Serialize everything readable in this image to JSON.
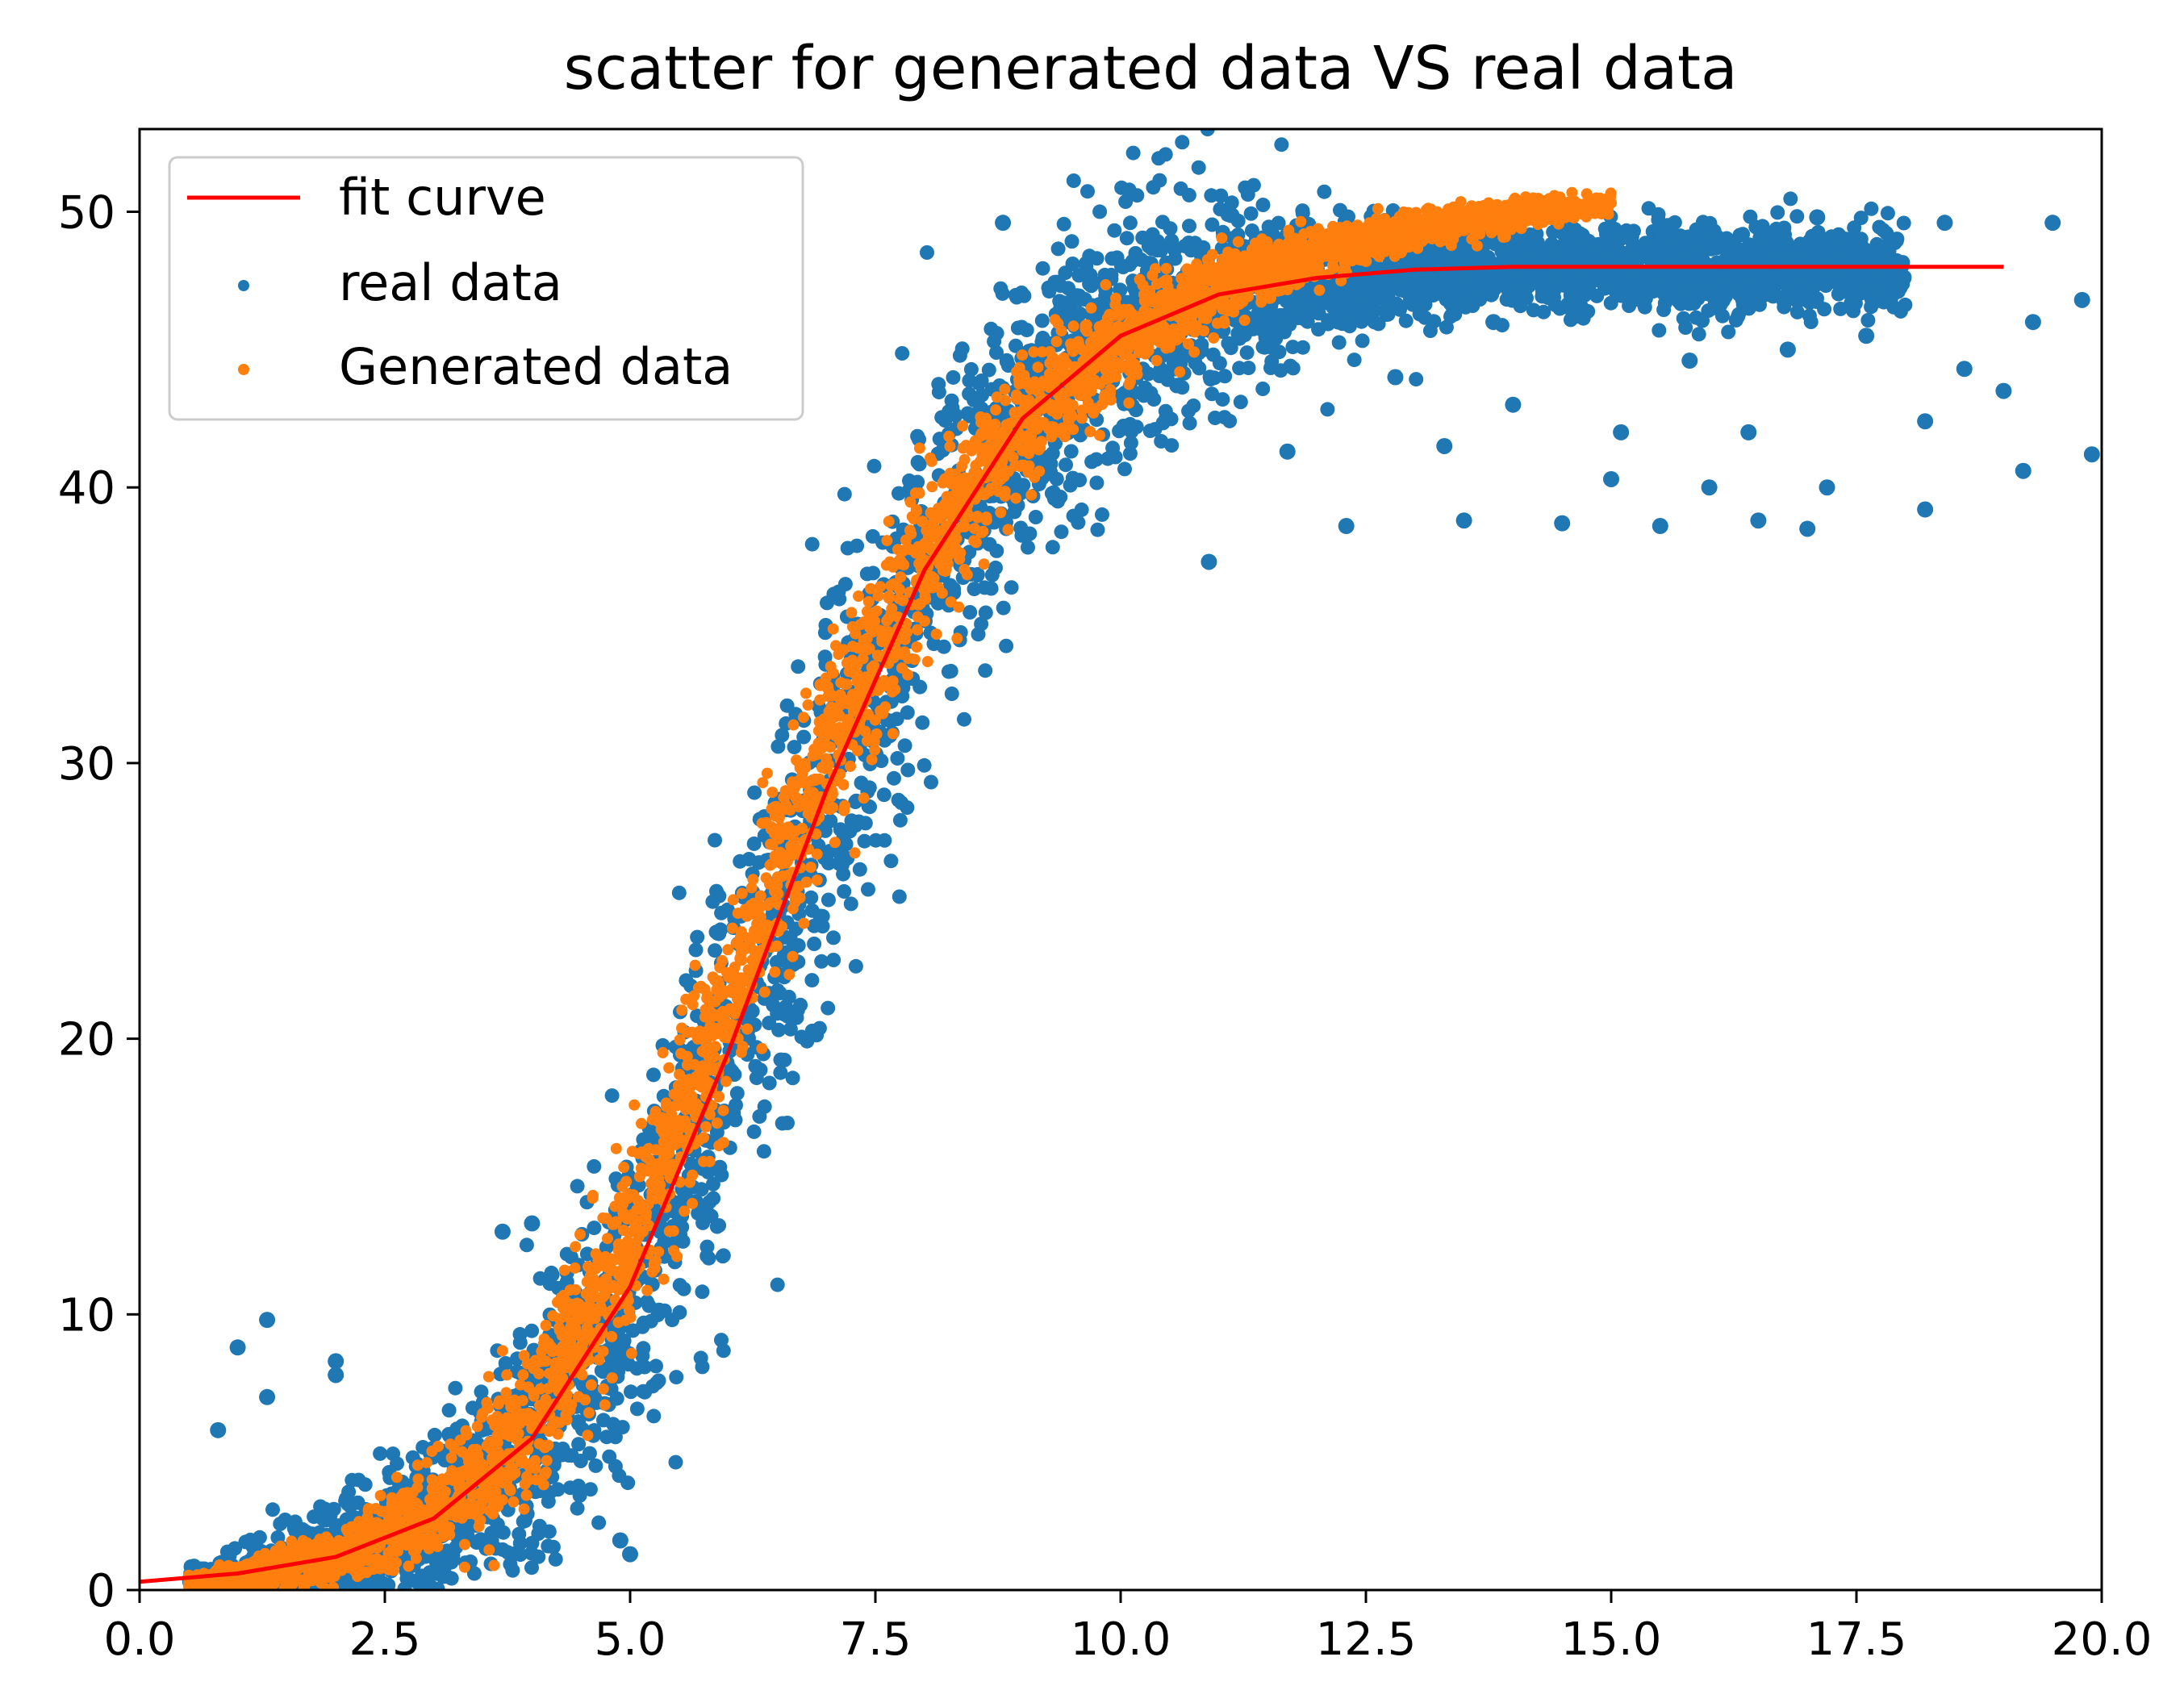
{
  "chart_data": {
    "type": "scatter",
    "title": "scatter for  generated data VS real data",
    "xlabel": "",
    "ylabel": "",
    "xlim": [
      0,
      20
    ],
    "ylim": [
      0,
      53
    ],
    "x_ticks": [
      0,
      2.5,
      5,
      7.5,
      10,
      12.5,
      15,
      17.5,
      20
    ],
    "x_tick_labels": [
      "0.0",
      "2.5",
      "5.0",
      "7.5",
      "10.0",
      "12.5",
      "15.0",
      "17.5",
      "20.0"
    ],
    "y_ticks": [
      0,
      10,
      20,
      30,
      40,
      50
    ],
    "y_tick_labels": [
      "0",
      "10",
      "20",
      "30",
      "40",
      "50"
    ],
    "grid": false,
    "legend_position": "top-left",
    "legend": [
      {
        "label": "fit curve",
        "kind": "line",
        "color": "#ff0000"
      },
      {
        "label": "real data",
        "kind": "marker",
        "color": "#1f77b4"
      },
      {
        "label": "Generated data",
        "kind": "marker",
        "color": "#ff7f0e"
      }
    ],
    "series": [
      {
        "name": "real data",
        "kind": "scatter",
        "color": "#1f77b4",
        "description_points": {
          "band_center_x": [
            0.5,
            1,
            2,
            3,
            4,
            5,
            6,
            7,
            8,
            9,
            10,
            11,
            12,
            14,
            16,
            18
          ],
          "band_center_y": [
            0.3,
            0.5,
            1.2,
            2.6,
            5.5,
            11,
            19.5,
            29,
            37,
            42.5,
            45.5,
            47,
            47.5,
            48,
            48,
            48
          ],
          "band_width_y": [
            0.8,
            1.2,
            2.5,
            4,
            6,
            8,
            9,
            9,
            8,
            7,
            6,
            5,
            3,
            2,
            2,
            2
          ]
        },
        "outliers": [
          {
            "x": 1.0,
            "y": 8.8
          },
          {
            "x": 1.3,
            "y": 9.8
          },
          {
            "x": 1.3,
            "y": 7.0
          },
          {
            "x": 0.8,
            "y": 5.8
          },
          {
            "x": 2.0,
            "y": 8.3
          },
          {
            "x": 2.0,
            "y": 7.8
          },
          {
            "x": 3.7,
            "y": 13.0
          },
          {
            "x": 4.0,
            "y": 13.3
          },
          {
            "x": 5.0,
            "y": 1.3
          },
          {
            "x": 4.9,
            "y": 1.8
          },
          {
            "x": 7.3,
            "y": 34.5
          },
          {
            "x": 8.1,
            "y": 37.0
          },
          {
            "x": 10.9,
            "y": 37.3
          },
          {
            "x": 12.3,
            "y": 38.6
          },
          {
            "x": 13.5,
            "y": 38.8
          },
          {
            "x": 14.5,
            "y": 38.7
          },
          {
            "x": 15.5,
            "y": 38.6
          },
          {
            "x": 16.5,
            "y": 38.8
          },
          {
            "x": 17.0,
            "y": 38.5
          },
          {
            "x": 17.2,
            "y": 40.0
          },
          {
            "x": 18.2,
            "y": 39.2
          },
          {
            "x": 18.2,
            "y": 42.4
          },
          {
            "x": 18.6,
            "y": 44.3
          },
          {
            "x": 19.0,
            "y": 43.5
          },
          {
            "x": 19.2,
            "y": 40.6
          },
          {
            "x": 19.3,
            "y": 46.0
          },
          {
            "x": 19.5,
            "y": 49.6
          },
          {
            "x": 19.8,
            "y": 46.8
          },
          {
            "x": 19.9,
            "y": 41.2
          },
          {
            "x": 18.4,
            "y": 49.6
          },
          {
            "x": 17.1,
            "y": 49.8
          },
          {
            "x": 8.8,
            "y": 49.6
          },
          {
            "x": 13.8,
            "y": 46.0
          },
          {
            "x": 15.1,
            "y": 42.0
          },
          {
            "x": 16.0,
            "y": 40.0
          },
          {
            "x": 12.8,
            "y": 44.0
          },
          {
            "x": 11.7,
            "y": 41.3
          },
          {
            "x": 14.0,
            "y": 43.0
          },
          {
            "x": 15.8,
            "y": 44.6
          },
          {
            "x": 16.8,
            "y": 45.0
          },
          {
            "x": 13.3,
            "y": 41.5
          },
          {
            "x": 15.0,
            "y": 40.3
          },
          {
            "x": 16.4,
            "y": 42.0
          },
          {
            "x": 17.6,
            "y": 45.5
          }
        ]
      },
      {
        "name": "Generated data",
        "kind": "scatter",
        "color": "#ff7f0e",
        "description_points": {
          "band_center_x": [
            0.5,
            1,
            2,
            3,
            4,
            5,
            6,
            7,
            8,
            9,
            10,
            11,
            12,
            13,
            14,
            15
          ],
          "band_center_y": [
            0.3,
            0.5,
            1.2,
            2.8,
            6.0,
            12.5,
            21.5,
            30.5,
            37.5,
            42.5,
            45.3,
            47.3,
            48.5,
            49.3,
            49.9,
            50.3
          ],
          "band_width_y": [
            0.5,
            0.8,
            1.6,
            3,
            5,
            6,
            6,
            6,
            5.5,
            4,
            3,
            2.2,
            1.6,
            1.2,
            0.9,
            0.6
          ]
        }
      },
      {
        "name": "fit curve",
        "kind": "line",
        "color": "#ff0000",
        "x": [
          0,
          1,
          2,
          3,
          4,
          5,
          6,
          7,
          8,
          9,
          10,
          11,
          12,
          13,
          14,
          15,
          16,
          17,
          18,
          19
        ],
        "y": [
          0.3,
          0.6,
          1.2,
          2.6,
          5.5,
          11.0,
          19.5,
          29.0,
          37.0,
          42.5,
          45.5,
          47.0,
          47.6,
          47.9,
          48.0,
          48.0,
          48.0,
          48.0,
          48.0,
          48.0
        ]
      }
    ]
  }
}
